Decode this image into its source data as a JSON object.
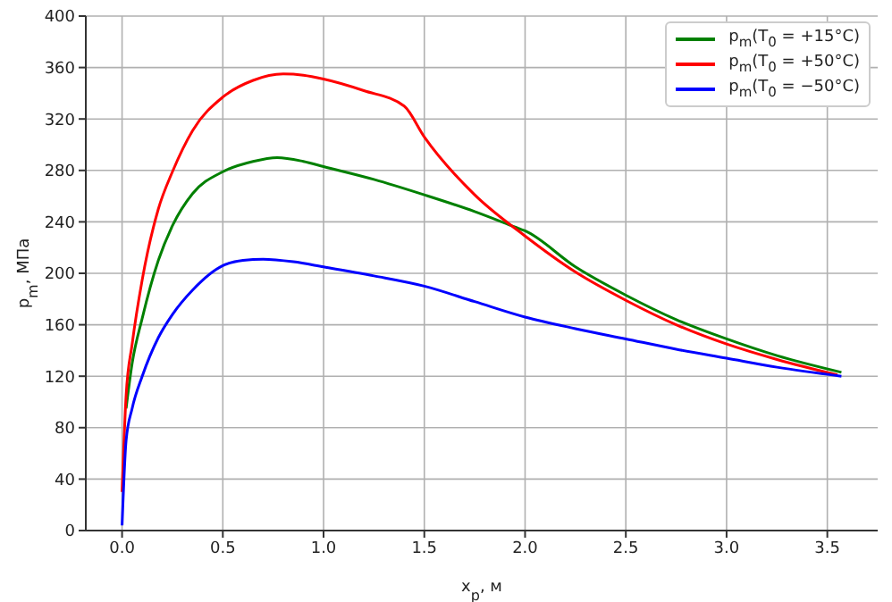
{
  "chart_data": {
    "type": "line",
    "xlabel": "x$_{p}$, м",
    "ylabel": "p$_{m}$, МПа",
    "xlim": [
      -0.18,
      3.75
    ],
    "xticks": [
      {
        "value": 0,
        "label": "0.0"
      },
      0.5,
      {
        "value": 1,
        "label": "1.0"
      },
      1.5,
      {
        "value": 2,
        "label": "2.0"
      },
      2.5,
      {
        "value": 3,
        "label": "3.0"
      },
      3.5
    ],
    "ylim": [
      0,
      400
    ],
    "yticks": [
      0,
      40,
      80,
      120,
      160,
      200,
      240,
      280,
      320,
      360,
      400
    ],
    "grid": true,
    "legend": "top right",
    "series": [
      {
        "name": "p$_{m}$(T$_{0}$ = +15°C)",
        "color": "#008000",
        "x": [
          0.02,
          0.05,
          0.1,
          0.18,
          0.25,
          0.35,
          0.5,
          0.65,
          0.77,
          0.9,
          1.0,
          1.25,
          1.5,
          1.75,
          1.95,
          2.0,
          2.25,
          2.5,
          2.75,
          3.0,
          3.25,
          3.57
        ],
        "values": [
          95,
          130,
          165,
          210,
          237,
          262,
          279,
          287,
          290,
          287,
          283,
          273,
          261,
          248,
          236,
          233,
          205,
          183,
          164,
          149,
          136,
          123
        ]
      },
      {
        "name": "p$_{m}$(T$_{0}$ = +50°C)",
        "color": "#ff0000",
        "x": [
          0,
          0.02,
          0.05,
          0.1,
          0.18,
          0.25,
          0.35,
          0.5,
          0.65,
          0.8,
          0.9,
          1.0,
          1.2,
          1.4,
          1.5,
          1.75,
          2.0,
          2.25,
          2.5,
          2.75,
          3.0,
          3.25,
          3.55
        ],
        "values": [
          30,
          105,
          145,
          195,
          250,
          279,
          311,
          337,
          350,
          355,
          354,
          351,
          342,
          330,
          306,
          261,
          229,
          201,
          179,
          160,
          145,
          133,
          121
        ]
      },
      {
        "name": "p$_{m}$(T$_{0}$ = −50°C)",
        "color": "#0000ff",
        "x": [
          0,
          0.02,
          0.05,
          0.1,
          0.18,
          0.25,
          0.35,
          0.5,
          0.6,
          0.7,
          0.85,
          1.0,
          1.25,
          1.5,
          1.75,
          2.0,
          2.25,
          2.5,
          2.75,
          3.0,
          3.25,
          3.57
        ],
        "values": [
          4,
          70,
          95,
          120,
          150,
          168,
          187,
          206,
          210,
          211,
          209,
          205,
          198,
          190,
          178,
          166,
          157,
          149,
          141,
          134,
          127,
          120
        ]
      }
    ]
  }
}
